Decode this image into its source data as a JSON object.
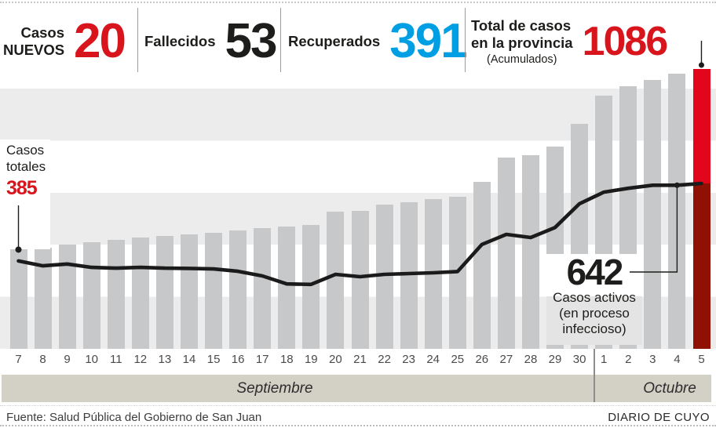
{
  "header": {
    "stats": [
      {
        "label1": "Casos",
        "label2": "NUEVOS",
        "value": "20",
        "color": "#d8151d"
      },
      {
        "label1": "Fallecidos",
        "value": "53",
        "color": "#1d1d1b"
      },
      {
        "label1": "Recuperados",
        "value": "391",
        "color": "#009fe3"
      },
      {
        "label1": "Total de casos",
        "label2": "en la provincia",
        "sublabel": "(Acumulados)",
        "value": "1086",
        "color": "#d8151d"
      }
    ]
  },
  "chart_data": {
    "type": "bar",
    "categories": [
      "7",
      "8",
      "9",
      "10",
      "11",
      "12",
      "13",
      "14",
      "15",
      "16",
      "17",
      "18",
      "19",
      "20",
      "21",
      "22",
      "23",
      "24",
      "25",
      "26",
      "27",
      "28",
      "29",
      "30",
      "1",
      "2",
      "3",
      "4",
      "5"
    ],
    "series": [
      {
        "name": "Total de casos en la provincia (Acumulados)",
        "type": "bar",
        "values": [
          385,
          394,
          404,
          414,
          423,
          431,
          439,
          445,
          451,
          459,
          468,
          474,
          481,
          534,
          536,
          560,
          569,
          581,
          590,
          648,
          742,
          751,
          785,
          873,
          984,
          1019,
          1043,
          1067,
          1086
        ]
      },
      {
        "name": "Casos activos (en proceso infeccioso)",
        "type": "line",
        "values": [
          341,
          322,
          329,
          316,
          313,
          316,
          313,
          312,
          310,
          301,
          283,
          252,
          250,
          289,
          280,
          289,
          292,
          295,
          300,
          405,
          444,
          432,
          471,
          563,
          608,
          623,
          635,
          635,
          642
        ]
      }
    ],
    "months": [
      {
        "label": "Septiembre",
        "span_days": 24
      },
      {
        "label": "Octubre",
        "span_days": 5
      }
    ],
    "ylim": [
      0,
      1086
    ],
    "grid": "horizontal-bands",
    "legend_position": "none",
    "colors": {
      "bar": "#c7c8c9",
      "bar_highlight_top": "#e2061c",
      "bar_highlight_bottom": "#8e1104",
      "line": "#1b1b1b",
      "band": "#ececec",
      "month_band": "#d3d0c6"
    },
    "annotations": {
      "start": {
        "line1": "Casos",
        "line2": "totales",
        "value": "385",
        "target_day": "7"
      },
      "active": {
        "value": "642",
        "line1": "Casos activos",
        "line2": "(en proceso",
        "line3": "infeccioso)",
        "target_day": "4"
      },
      "max": {
        "value": "1086",
        "target_day": "5"
      }
    }
  },
  "footer": {
    "source": "Fuente: Salud Pública del Gobierno de San Juan",
    "credit": "DIARIO DE CUYO"
  }
}
